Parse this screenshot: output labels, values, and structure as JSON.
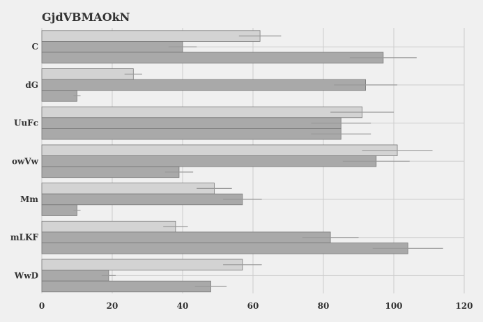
{
  "chart_data": {
    "type": "bar",
    "orientation": "horizontal",
    "title": "GjdVBMAOkN",
    "xlabel": "",
    "ylabel": "",
    "categories": [
      "C",
      "dG",
      "UuFc",
      "owVw",
      "Mm",
      "mLKF",
      "WwD"
    ],
    "xlim": [
      0,
      120
    ],
    "xticks": [
      0,
      20,
      40,
      60,
      80,
      100,
      120
    ],
    "grid": true,
    "legend": "none",
    "series": [
      {
        "color": "#d3d3d3",
        "values": [
          62,
          26,
          91,
          101,
          49,
          38,
          57
        ],
        "errors": [
          6,
          2.5,
          9,
          10,
          5,
          3.5,
          5.5
        ]
      },
      {
        "color": "#a9a9a9",
        "values": [
          40,
          92,
          85,
          95,
          57,
          82,
          19
        ],
        "errors": [
          4,
          9,
          8.5,
          9.5,
          5.5,
          8,
          2
        ]
      },
      {
        "color": "#a9a9a9",
        "values": [
          97,
          10,
          85,
          39,
          10,
          104,
          48
        ],
        "errors": [
          9.5,
          1,
          8.5,
          4,
          1,
          10,
          4.5
        ]
      }
    ]
  }
}
